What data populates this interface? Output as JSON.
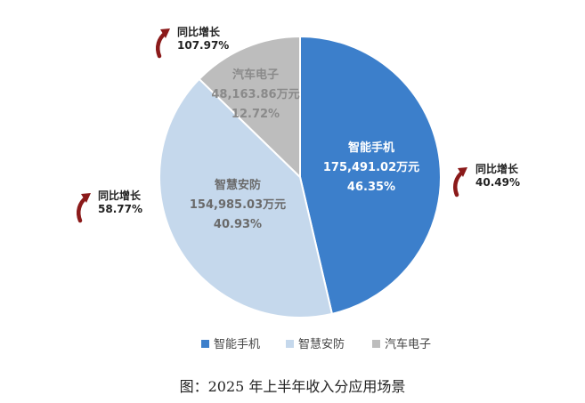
{
  "chart_data": {
    "type": "pie",
    "slices": [
      {
        "name": "智能手机",
        "value_label": "175,491.02万元",
        "percent_label": "46.35%",
        "percent": 46.35,
        "growth_title": "同比增长",
        "growth": "40.49%",
        "color": "#3c7fcb",
        "text_color": "#ffffff"
      },
      {
        "name": "智慧安防",
        "value_label": "154,985.03万元",
        "percent_label": "40.93%",
        "percent": 40.93,
        "growth_title": "同比增长",
        "growth": "58.77%",
        "color": "#c5d8ec",
        "text_color": "#6a6a6a"
      },
      {
        "name": "汽车电子",
        "value_label": "48,163.86万元",
        "percent_label": "12.72%",
        "percent": 12.72,
        "growth_title": "同比增长",
        "growth": "107.97%",
        "color": "#bdbdbd",
        "text_color": "#8a8a8a"
      }
    ],
    "legend": [
      "智能手机",
      "智慧安防",
      "汽车电子"
    ],
    "legend_position": "bottom",
    "arrow_color": "#8b1a1a"
  },
  "caption": "图：2025 年上半年收入分应用场景"
}
